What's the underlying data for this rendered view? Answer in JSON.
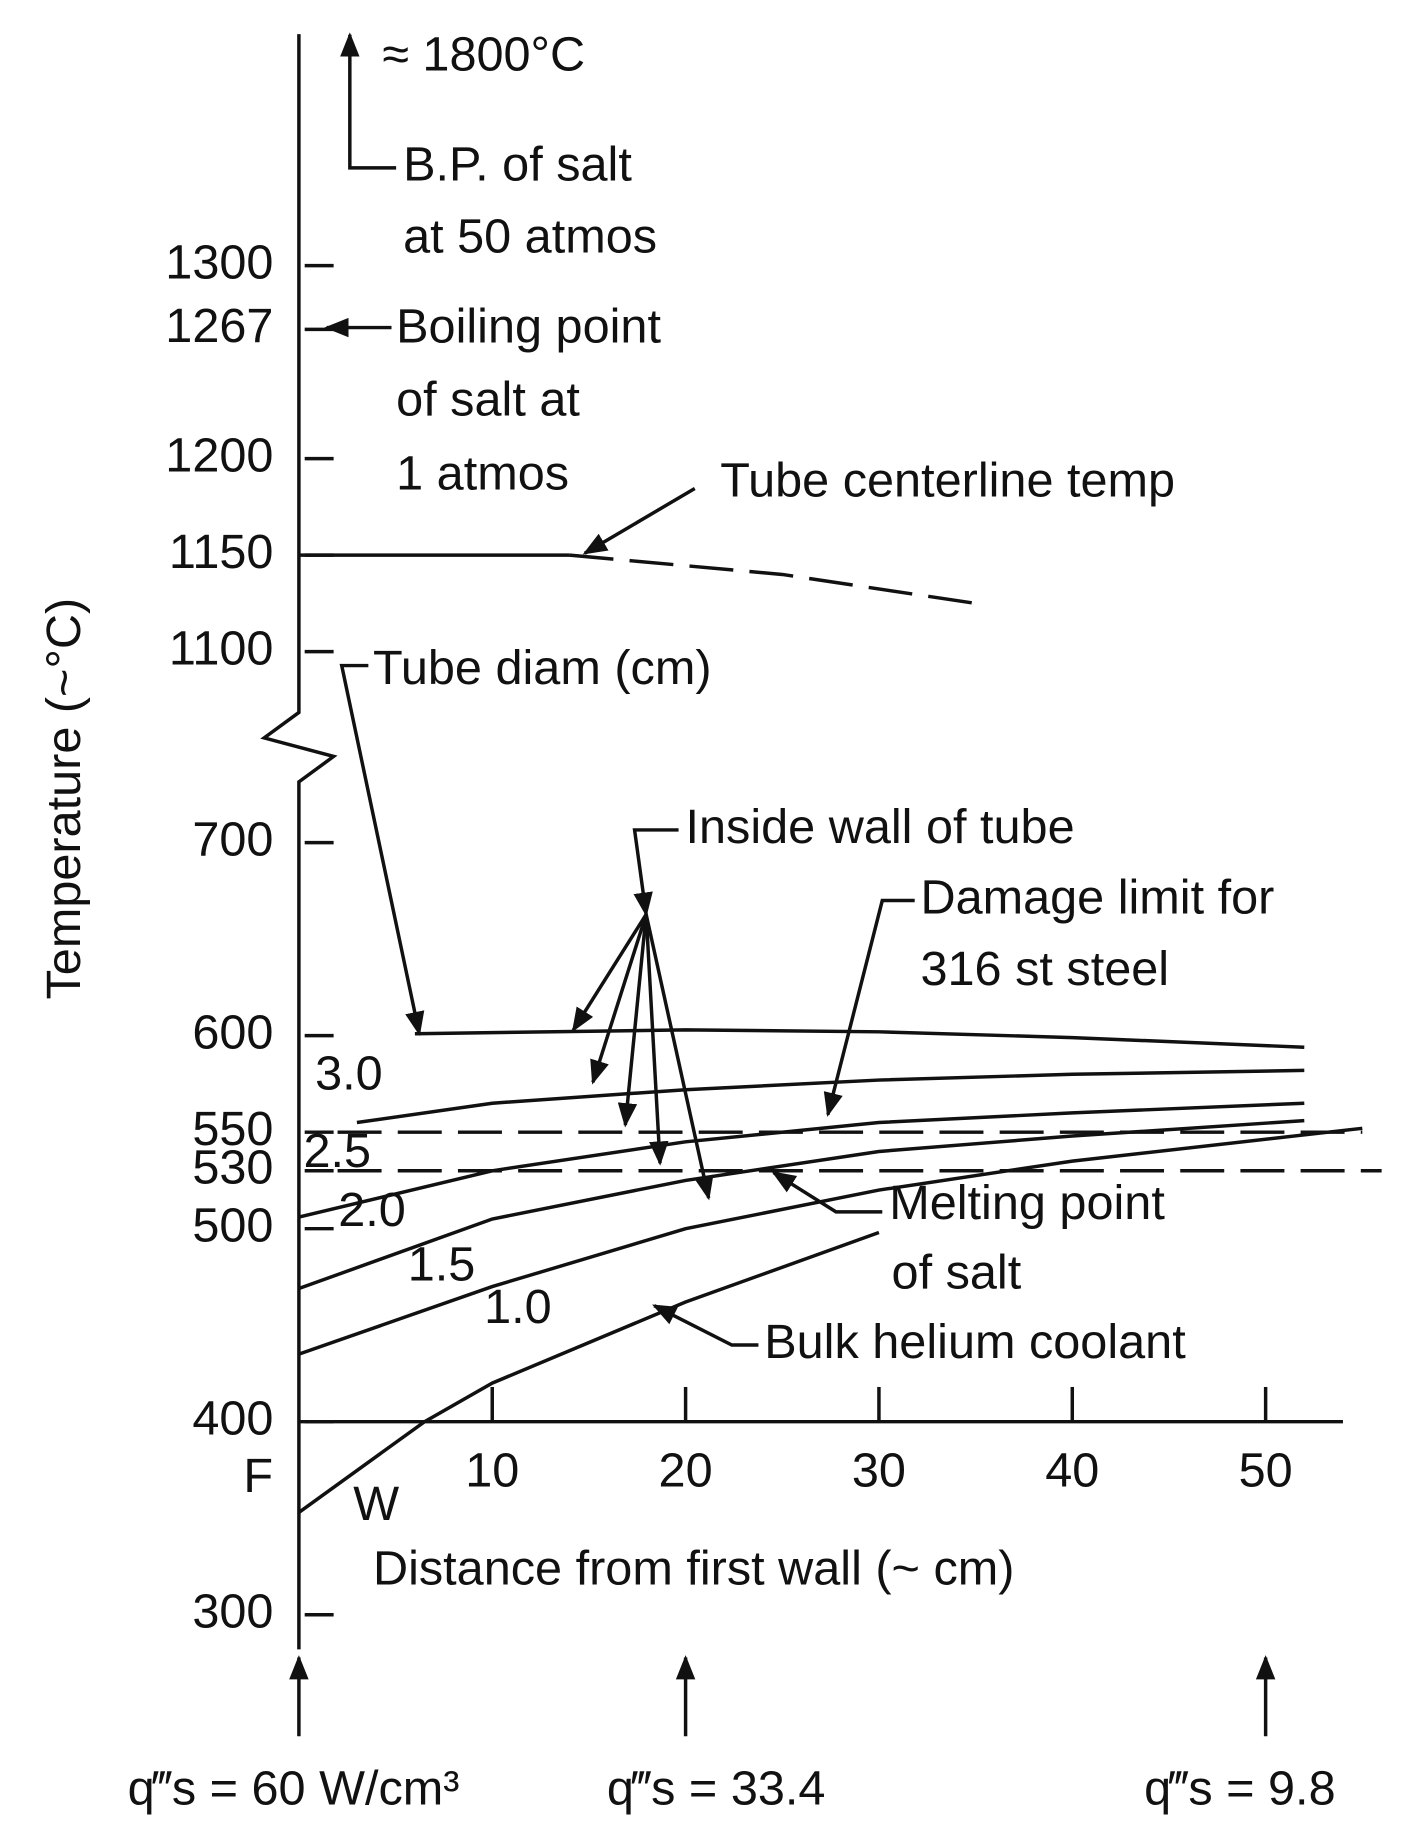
{
  "chart_data": {
    "type": "line",
    "ylabel": "Temperature (~°C)",
    "xlabel": "Distance from first wall (~ cm)",
    "xlim": [
      0,
      54
    ],
    "xticks": [
      10,
      20,
      30,
      40,
      50
    ],
    "ylim": [
      300,
      1300
    ],
    "ybreak": [
      700,
      1100
    ],
    "yticks": [
      300,
      400,
      500,
      530,
      550,
      600,
      700,
      1100,
      1150,
      1200,
      1267,
      1300
    ],
    "x_axis_at": 400,
    "series": [
      {
        "x": [
          0,
          6.5,
          10,
          20,
          30
        ],
        "values": [
          353,
          400,
          420,
          462,
          498
        ],
        "dash": false
      },
      {
        "x": [
          0,
          10,
          20,
          30,
          40,
          55
        ],
        "values": [
          435,
          470,
          500,
          520,
          535,
          552
        ],
        "dash": false,
        "label": "1.0"
      },
      {
        "x": [
          0,
          10,
          20,
          30,
          40,
          52
        ],
        "values": [
          469,
          505,
          525,
          540,
          548,
          556
        ],
        "dash": false,
        "label": "1.5"
      },
      {
        "x": [
          0,
          10,
          20,
          30,
          40,
          52
        ],
        "values": [
          506,
          530,
          545,
          555,
          560,
          565
        ],
        "dash": false,
        "label": "2.0"
      },
      {
        "x": [
          3,
          10,
          20,
          30,
          40,
          52
        ],
        "values": [
          555,
          565,
          572,
          577,
          580,
          582
        ],
        "dash": false,
        "label": "2.5"
      },
      {
        "x": [
          6,
          20,
          30,
          40,
          52
        ],
        "values": [
          601,
          603,
          602,
          599,
          594
        ],
        "dash": false,
        "label": "3.0"
      },
      {
        "x": [
          2,
          55
        ],
        "values": [
          550,
          550
        ],
        "dash": true
      },
      {
        "x": [
          2,
          56
        ],
        "values": [
          530,
          530
        ],
        "dash": true
      },
      {
        "x": [
          0,
          14
        ],
        "values": [
          1150,
          1150
        ],
        "dash": false
      },
      {
        "x": [
          14,
          25,
          35
        ],
        "values": [
          1150,
          1140,
          1125
        ],
        "dash": true
      }
    ],
    "annotations": [
      [
        "≈ 1800°C"
      ],
      [
        "B.P. of salt",
        "at 50 atmos"
      ],
      [
        "Boiling point",
        "of salt at",
        "1 atmos"
      ],
      [
        "Tube centerline temp"
      ],
      [
        "Tube diam (cm)"
      ],
      [
        "Inside wall of tube"
      ],
      [
        "Damage limit for",
        "316 st steel"
      ],
      [
        "Melting point",
        "of salt"
      ],
      [
        "Bulk helium coolant"
      ],
      [
        "F"
      ],
      [
        "W"
      ]
    ],
    "heat_generation": [
      {
        "x": 0,
        "label": "q‴s = 60 W/cm³"
      },
      {
        "x": 20,
        "label": "q‴s = 33.4"
      },
      {
        "x": 50,
        "label": "q‴s = 9.8"
      }
    ]
  }
}
